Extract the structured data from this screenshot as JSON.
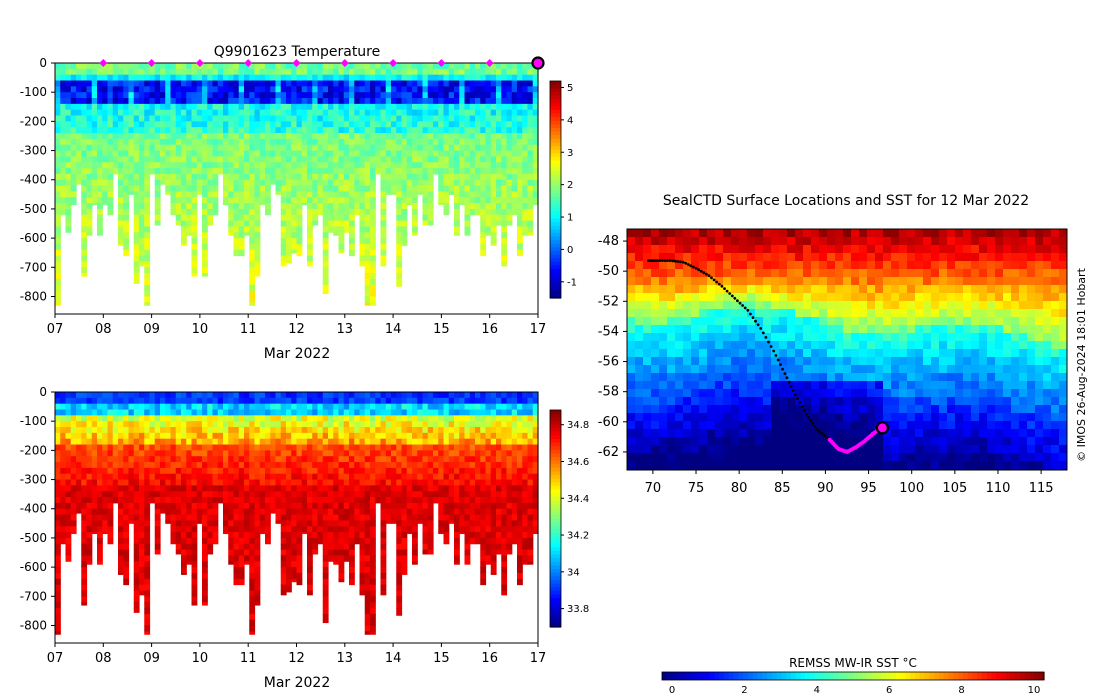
{
  "chart_data": [
    {
      "type": "heatmap",
      "title": "Q9901623  Temperature",
      "xlabel": "Mar 2022",
      "ylabel": "",
      "xtick_labels": [
        "07",
        "08",
        "09",
        "10",
        "11",
        "12",
        "13",
        "14",
        "15",
        "16",
        "17"
      ],
      "xlim": [
        7,
        17
      ],
      "ytick_values": [
        0,
        -100,
        -200,
        -300,
        -400,
        -500,
        -600,
        -700,
        -800
      ],
      "ylim": [
        -860,
        0
      ],
      "colorbar": {
        "min": -1.5,
        "max": 5.2,
        "ticks": [
          5,
          4,
          3,
          2,
          1,
          0,
          -1
        ],
        "colormap": "jet"
      },
      "surface_markers_days": [
        8,
        9,
        10,
        11,
        12,
        13,
        14,
        15,
        16
      ],
      "current_marker_day": 17,
      "colors": {
        "marker": "#ff00ff",
        "current_marker": "#ff00ff"
      }
    },
    {
      "type": "heatmap",
      "title": "",
      "xlabel": "Mar 2022",
      "ylabel": "",
      "xtick_labels": [
        "07",
        "08",
        "09",
        "10",
        "11",
        "12",
        "13",
        "14",
        "15",
        "16",
        "17"
      ],
      "xlim": [
        7,
        17
      ],
      "ytick_values": [
        0,
        -100,
        -200,
        -300,
        -400,
        -500,
        -600,
        -700,
        -800
      ],
      "ylim": [
        -860,
        0
      ],
      "colorbar": {
        "min": 33.7,
        "max": 34.88,
        "ticks": [
          34.8,
          34.6,
          34.4,
          34.2,
          34,
          33.8
        ],
        "colormap": "jet"
      }
    },
    {
      "type": "heatmap",
      "title": "SealCTD Surface Locations and SST for 12 Mar 2022",
      "xlabel": "",
      "ylabel": "",
      "xtick_values": [
        70,
        75,
        80,
        85,
        90,
        95,
        100,
        105,
        110,
        115
      ],
      "ytick_values": [
        -48,
        -50,
        -52,
        -54,
        -56,
        -58,
        -60,
        -62
      ],
      "xlim": [
        67,
        118
      ],
      "ylim": [
        -63.2,
        -47.2
      ],
      "colorbar": {
        "label": "REMSS MW-IR SST °C",
        "min": 0,
        "max": 10,
        "ticks": [
          0,
          2,
          4,
          6,
          8,
          10
        ],
        "colormap": "jet"
      },
      "track": [
        [
          69.5,
          -49.3
        ],
        [
          70.5,
          -49.3
        ],
        [
          72,
          -49.3
        ],
        [
          73.5,
          -49.4
        ],
        [
          75,
          -49.8
        ],
        [
          76.5,
          -50.3
        ],
        [
          78,
          -51
        ],
        [
          79.5,
          -51.8
        ],
        [
          81,
          -52.6
        ],
        [
          82.5,
          -53.8
        ],
        [
          84,
          -55.3
        ],
        [
          85.3,
          -56.8
        ],
        [
          86.5,
          -58.2
        ],
        [
          87.8,
          -59.5
        ],
        [
          89,
          -60.5
        ],
        [
          90.5,
          -61.2
        ],
        [
          91.5,
          -61.8
        ],
        [
          92.5,
          -62
        ],
        [
          93.5,
          -61.7
        ],
        [
          94.5,
          -61.3
        ],
        [
          95.5,
          -60.8
        ],
        [
          96.5,
          -60.4
        ]
      ],
      "recent_track_from_index": 15,
      "current_position": [
        96.6,
        -60.4
      ],
      "colors": {
        "track": "#000000",
        "recent": "#ff00ff"
      }
    }
  ],
  "credit": "© IMOS 26-Aug-2024 18:01 Hobart"
}
